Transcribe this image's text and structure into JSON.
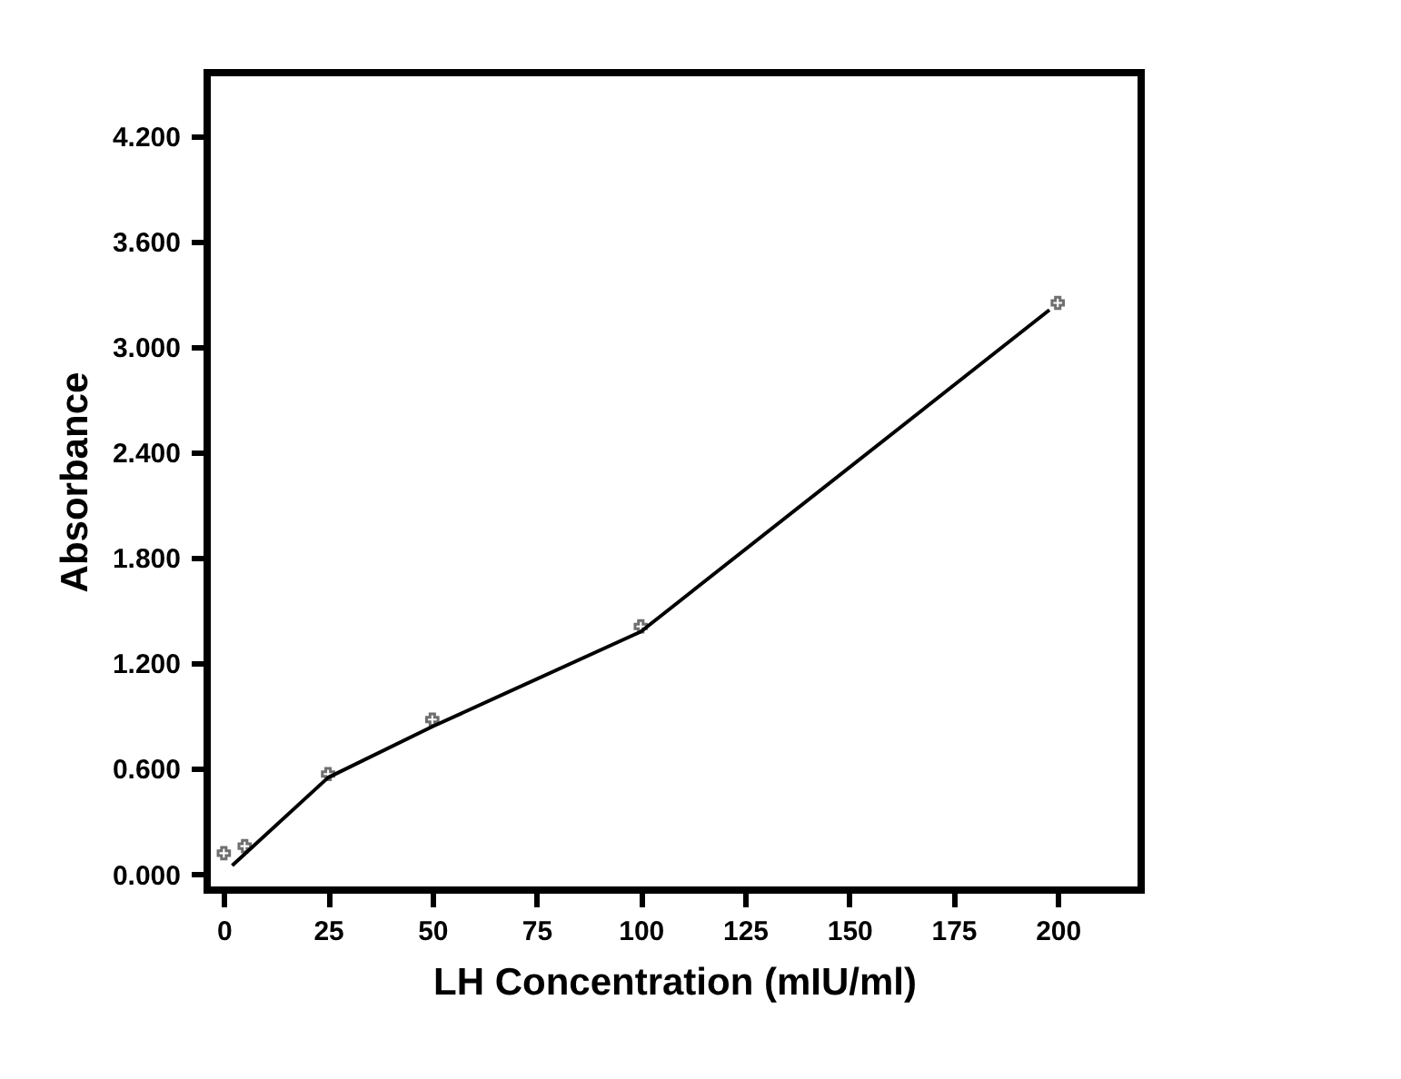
{
  "chart_data": {
    "type": "scatter",
    "xlabel": "LH Concentration (mIU/ml)",
    "ylabel": "Absorbance",
    "series": [
      {
        "color": "#333333",
        "marker": "cross",
        "x": [
          0,
          5,
          25,
          50,
          100,
          200
        ],
        "values": [
          0.12,
          0.16,
          0.57,
          0.88,
          1.41,
          3.25
        ]
      },
      {
        "type": "line",
        "color": "#000000",
        "marker": "none",
        "line_style": "solid",
        "x": [
          2,
          25,
          50,
          100,
          198
        ],
        "values": [
          0.05,
          0.55,
          0.84,
          1.38,
          3.21
        ]
      }
    ],
    "xlim": [
      -4,
      220
    ],
    "xticks": [
      0,
      25,
      50,
      75,
      100,
      125,
      150,
      175,
      200
    ],
    "ylim": [
      -0.09,
      4.56
    ],
    "yticks": [
      {
        "value": 0,
        "label": "0.000"
      },
      {
        "value": 0.6,
        "label": "0.600"
      },
      {
        "value": 1.2,
        "label": "1.200"
      },
      {
        "value": 1.8,
        "label": "1.800"
      },
      {
        "value": 2.4,
        "label": "2.400"
      },
      {
        "value": 3.0,
        "label": "3.000"
      },
      {
        "value": 3.6,
        "label": "3.600"
      },
      {
        "value": 4.2,
        "label": "4.200"
      }
    ],
    "grid": false
  }
}
